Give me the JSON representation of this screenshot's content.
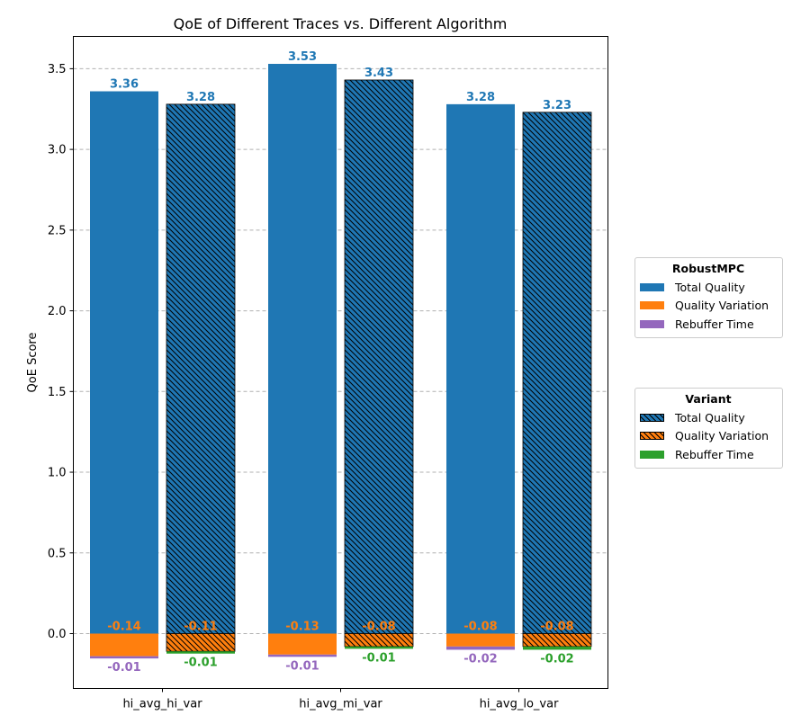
{
  "chart_data": {
    "type": "bar",
    "title": "QoE of Different Traces vs. Different Algorithm",
    "xlabel": "",
    "ylabel": "QoE Score",
    "ylim": [
      -0.34,
      3.7
    ],
    "yticks": [
      "0.0",
      "0.5",
      "1.0",
      "1.5",
      "2.0",
      "2.5",
      "3.0",
      "3.5"
    ],
    "ytick_values": [
      0.0,
      0.5,
      1.0,
      1.5,
      2.0,
      2.5,
      3.0,
      3.5
    ],
    "grid": "y-dashed",
    "categories": [
      "hi_avg_hi_var",
      "hi_avg_mi_var",
      "hi_avg_lo_var"
    ],
    "groups": [
      {
        "name": "RobustMPC",
        "hatched": false,
        "series": [
          {
            "name": "Total Quality",
            "values": [
              3.36,
              3.53,
              3.28
            ],
            "labels": [
              "3.36",
              "3.53",
              "3.28"
            ]
          },
          {
            "name": "Quality Variation",
            "values": [
              -0.14,
              -0.13,
              -0.08
            ],
            "labels": [
              "-0.14",
              "-0.13",
              "-0.08"
            ]
          },
          {
            "name": "Rebuffer Time",
            "values": [
              -0.01,
              -0.01,
              -0.02
            ],
            "labels": [
              "-0.01",
              "-0.01",
              "-0.02"
            ]
          }
        ]
      },
      {
        "name": "Variant",
        "hatched": true,
        "series": [
          {
            "name": "Total Quality",
            "values": [
              3.28,
              3.43,
              3.23
            ],
            "labels": [
              "3.28",
              "3.43",
              "3.23"
            ]
          },
          {
            "name": "Quality Variation",
            "values": [
              -0.11,
              -0.08,
              -0.08
            ],
            "labels": [
              "-0.11",
              "-0.08",
              "-0.08"
            ]
          },
          {
            "name": "Rebuffer Time",
            "values": [
              -0.01,
              -0.01,
              -0.02
            ],
            "labels": [
              "-0.01",
              "-0.01",
              "-0.02"
            ]
          }
        ]
      }
    ],
    "legends": [
      {
        "title": "RobustMPC",
        "placement": "right-upper",
        "items": [
          "Total Quality",
          "Quality Variation",
          "Rebuffer Time"
        ]
      },
      {
        "title": "Variant",
        "placement": "right-lower",
        "items": [
          "Total Quality",
          "Quality Variation",
          "Rebuffer Time"
        ]
      }
    ]
  },
  "colors": {
    "total_quality": "#1f77b4",
    "quality_variation": "#ff7f0e",
    "rebuffer_robustmpc": "#9467bd",
    "rebuffer_variant": "#2ca02c",
    "grid": "#b0b0b0"
  }
}
